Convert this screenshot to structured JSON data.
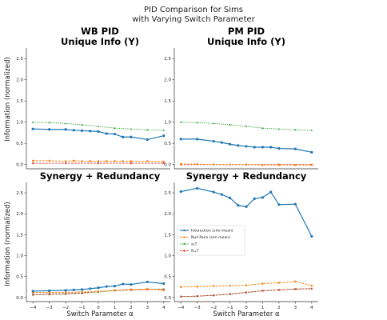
{
  "figure": {
    "suptitle_line1": "PID Comparison for Sims",
    "suptitle_line2": "with Varying Switch Parameter",
    "ylabel": "Information (normalized)",
    "xlabel": "Switch Parameter α"
  },
  "colors": {
    "interaction": "#1f77b4",
    "null_pairs": "#ff7f0e",
    "a1T": "#2ca02c",
    "dppT": "#d62728"
  },
  "chart_data": [
    {
      "type": "line",
      "title_line1": "WB PID",
      "title_line2": "Unique Info (Y)",
      "xlim": [
        -4.4,
        4.4
      ],
      "ylim": [
        -0.1,
        2.75
      ],
      "yticks": [
        0.0,
        0.5,
        1.0,
        1.5,
        2.0,
        2.5
      ],
      "grid": false,
      "series": [
        {
          "key": "interaction",
          "x": [
            -4,
            -3,
            -2,
            -1.5,
            -1,
            -0.5,
            0,
            0.5,
            1,
            1.5,
            2,
            3,
            4
          ],
          "y": [
            0.84,
            0.83,
            0.83,
            0.81,
            0.8,
            0.79,
            0.78,
            0.73,
            0.72,
            0.65,
            0.65,
            0.59,
            0.68
          ]
        },
        {
          "key": "null_pairs",
          "x": [
            -4,
            -3,
            -2,
            -1.5,
            -1,
            -0.5,
            0,
            0.5,
            1,
            1.5,
            2,
            3,
            4
          ],
          "y": [
            0.09,
            0.09,
            0.08,
            0.09,
            0.08,
            0.08,
            0.08,
            0.08,
            0.08,
            0.08,
            0.08,
            0.08,
            0.07
          ]
        },
        {
          "key": "a1T",
          "x": [
            -4,
            -3,
            -2,
            -1,
            0,
            1,
            2,
            3,
            4
          ],
          "y": [
            1.0,
            0.99,
            0.97,
            0.94,
            0.9,
            0.86,
            0.84,
            0.82,
            0.81
          ]
        },
        {
          "key": "dppT",
          "x": [
            -4,
            -2,
            0,
            2,
            4
          ],
          "y": [
            0.03,
            0.03,
            0.03,
            0.03,
            0.03
          ]
        }
      ]
    },
    {
      "type": "line",
      "title_line1": "PM PID",
      "title_line2": "Unique Info (Y)",
      "xlim": [
        -4.4,
        4.4
      ],
      "ylim": [
        -0.1,
        2.75
      ],
      "yticks": [
        0.0,
        0.5,
        1.0,
        1.5,
        2.0,
        2.5
      ],
      "grid": false,
      "series": [
        {
          "key": "interaction",
          "x": [
            -4,
            -3,
            -2,
            -1.5,
            -1,
            -0.5,
            0,
            0.5,
            1,
            1.5,
            2,
            3,
            4
          ],
          "y": [
            0.6,
            0.6,
            0.55,
            0.52,
            0.48,
            0.45,
            0.43,
            0.41,
            0.41,
            0.41,
            0.38,
            0.37,
            0.29
          ]
        },
        {
          "key": "null_pairs",
          "x": [
            -4,
            -3,
            -2,
            -1,
            0,
            1,
            2,
            3,
            4
          ],
          "y": [
            0.01,
            0.01,
            0.0,
            0.0,
            0.0,
            -0.01,
            -0.01,
            -0.01,
            -0.01
          ]
        },
        {
          "key": "a1T",
          "x": [
            -4,
            -3,
            -2,
            -1,
            0,
            1,
            2,
            3,
            4
          ],
          "y": [
            1.0,
            0.99,
            0.97,
            0.94,
            0.9,
            0.86,
            0.84,
            0.82,
            0.81
          ]
        },
        {
          "key": "dppT",
          "x": [
            -4,
            -2,
            0,
            2,
            4
          ],
          "y": [
            0.0,
            0.0,
            0.0,
            0.0,
            0.0
          ]
        }
      ]
    },
    {
      "type": "line",
      "title_line1": "Synergy + Redundancy",
      "xlim": [
        -4.4,
        4.4
      ],
      "ylim": [
        -0.1,
        2.75
      ],
      "yticks": [
        0.0,
        0.5,
        1.0,
        1.5,
        2.0,
        2.5
      ],
      "xticks": [
        -4,
        -3,
        -2,
        -1,
        0,
        1,
        2,
        3,
        4
      ],
      "grid": false,
      "series": [
        {
          "key": "interaction",
          "x": [
            -4,
            -3,
            -2,
            -1.5,
            -1,
            -0.5,
            0,
            0.5,
            1,
            1.5,
            2,
            3,
            4
          ],
          "y": [
            0.15,
            0.16,
            0.17,
            0.18,
            0.19,
            0.21,
            0.23,
            0.26,
            0.27,
            0.32,
            0.31,
            0.37,
            0.33
          ]
        },
        {
          "key": "null_pairs",
          "x": [
            -4,
            -3,
            -2,
            -1,
            0,
            1,
            2,
            3,
            4
          ],
          "y": [
            0.12,
            0.12,
            0.12,
            0.13,
            0.14,
            0.17,
            0.19,
            0.2,
            0.17
          ]
        },
        {
          "key": "a1T",
          "x": [
            -4,
            -3,
            -2,
            -1,
            0,
            1,
            2,
            3,
            4
          ],
          "y": [
            0.06,
            0.07,
            0.08,
            0.1,
            0.13,
            0.16,
            0.18,
            0.2,
            0.2
          ]
        },
        {
          "key": "dppT",
          "x": [
            -4,
            -3,
            -2,
            -1,
            0,
            1,
            2,
            3,
            4
          ],
          "y": [
            0.07,
            0.08,
            0.09,
            0.11,
            0.14,
            0.17,
            0.18,
            0.19,
            0.19
          ]
        }
      ]
    },
    {
      "type": "line",
      "title_line1": "Synergy + Redundancy",
      "xlim": [
        -4.4,
        4.4
      ],
      "ylim": [
        -0.1,
        2.75
      ],
      "yticks": [
        0.0,
        0.5,
        1.0,
        1.5,
        2.0,
        2.5
      ],
      "xticks": [
        -4,
        -3,
        -2,
        -1,
        0,
        1,
        2,
        3,
        4
      ],
      "grid": false,
      "legend": {
        "location": "center-left",
        "entries": [
          {
            "key": "interaction",
            "label": "Interaction (sim mean)"
          },
          {
            "key": "null_pairs",
            "label": "Null Pairs (sim mean)"
          },
          {
            "key": "a1T",
            "label": "a₁T"
          },
          {
            "key": "dppT",
            "label": "δₚₚT"
          }
        ]
      },
      "series": [
        {
          "key": "interaction",
          "x": [
            -4,
            -3,
            -2,
            -1.5,
            -1,
            -0.5,
            0,
            0.5,
            1,
            1.5,
            2,
            3,
            4
          ],
          "y": [
            2.53,
            2.61,
            2.52,
            2.46,
            2.38,
            2.2,
            2.17,
            2.36,
            2.39,
            2.52,
            2.22,
            2.23,
            1.46
          ]
        },
        {
          "key": "null_pairs",
          "x": [
            -4,
            -3,
            -2,
            -1,
            0,
            1,
            2,
            3,
            4
          ],
          "y": [
            0.25,
            0.26,
            0.27,
            0.28,
            0.29,
            0.33,
            0.35,
            0.38,
            0.28
          ]
        },
        {
          "key": "a1T",
          "x": [
            -4,
            -3,
            -2,
            -1,
            0,
            1,
            2,
            3,
            4
          ],
          "y": [
            0.02,
            0.03,
            0.05,
            0.08,
            0.12,
            0.16,
            0.18,
            0.2,
            0.21
          ]
        },
        {
          "key": "dppT",
          "x": [
            -4,
            -3,
            -2,
            -1,
            0,
            1,
            2,
            3,
            4
          ],
          "y": [
            0.02,
            0.03,
            0.05,
            0.08,
            0.12,
            0.16,
            0.18,
            0.2,
            0.21
          ]
        }
      ]
    }
  ]
}
